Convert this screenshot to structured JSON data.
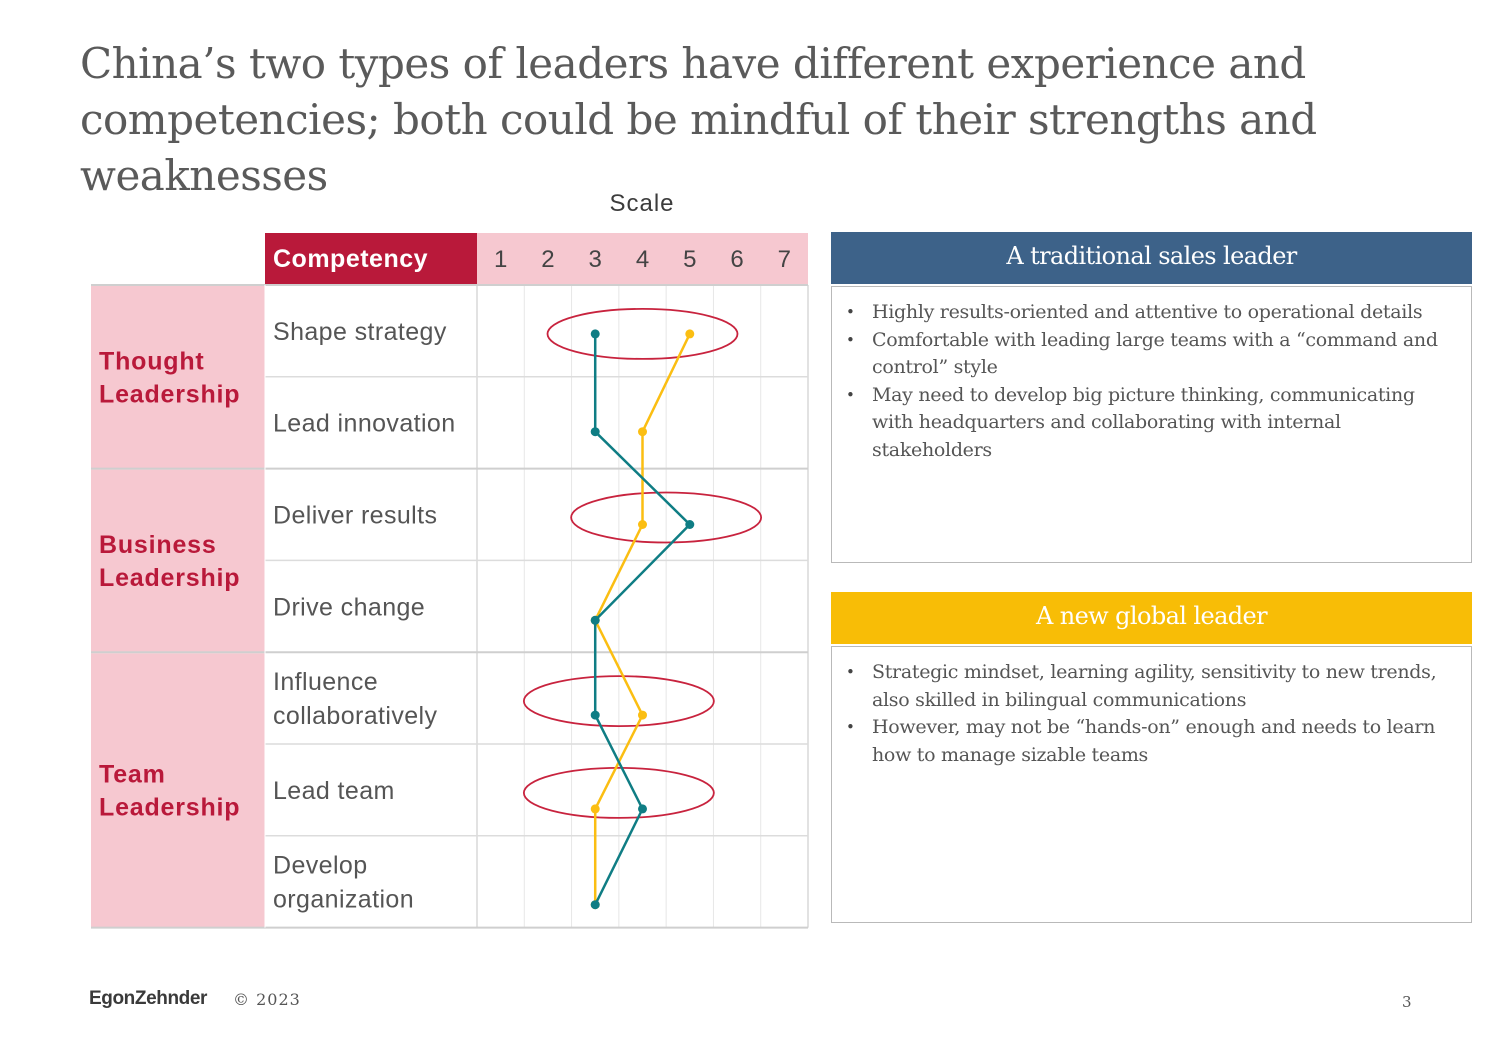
{
  "title": "China’s two types of leaders have different experience and competencies; both could be mindful of their strengths and weaknesses",
  "scale_label": "Scale",
  "competency_header": "Competency",
  "scale_ticks": [
    "1",
    "2",
    "3",
    "4",
    "5",
    "6",
    "7"
  ],
  "groups": [
    {
      "label": "Thought\nLeadership",
      "row_count": 2
    },
    {
      "label": "Business\nLeadership",
      "row_count": 2
    },
    {
      "label": "Team\nLeadership",
      "row_count": 3
    }
  ],
  "competencies": [
    "Shape strategy",
    "Lead innovation",
    "Deliver results",
    "Drive change",
    "Influence\ncollaboratively",
    "Lead team",
    "Develop\norganization"
  ],
  "chart_data": {
    "type": "line",
    "orientation": "horizontal-profile",
    "categories": [
      "Shape strategy",
      "Lead innovation",
      "Deliver results",
      "Drive change",
      "Influence collaboratively",
      "Lead team",
      "Develop organization"
    ],
    "x_scale": [
      1,
      7
    ],
    "series": [
      {
        "color": "#0f7d84",
        "values": [
          3,
          3,
          5,
          3,
          3,
          4,
          3
        ]
      },
      {
        "color": "#fbbe12",
        "values": [
          5,
          4,
          4,
          3,
          4,
          3,
          3
        ]
      }
    ],
    "highlighted_rows": [
      0,
      2,
      4,
      5
    ]
  },
  "colors": {
    "accent_red": "#b9193a",
    "group_pink": "#f6c8d0",
    "teal": "#0f7d84",
    "yellow": "#fbbe12",
    "traditional_header": "#3d6289",
    "global_header": "#f8bd06",
    "ellipse": "#c8233e"
  },
  "cards": {
    "traditional": {
      "header": "A traditional sales leader",
      "bullets": [
        "Highly results-oriented and attentive to operational details",
        "Comfortable with leading large teams with a “command and control” style",
        "May need to develop big picture thinking, communicating with headquarters and collaborating with internal stakeholders"
      ]
    },
    "global": {
      "header": "A new global leader",
      "bullets": [
        "Strategic mindset, learning agility, sensitivity to new trends, also skilled in bilingual communications",
        "However, may not be “hands-on” enough and needs to learn how to manage sizable teams"
      ]
    }
  },
  "footer": {
    "logo": "EgonZehnder",
    "copyright": "© 2023",
    "page_number": "3"
  }
}
